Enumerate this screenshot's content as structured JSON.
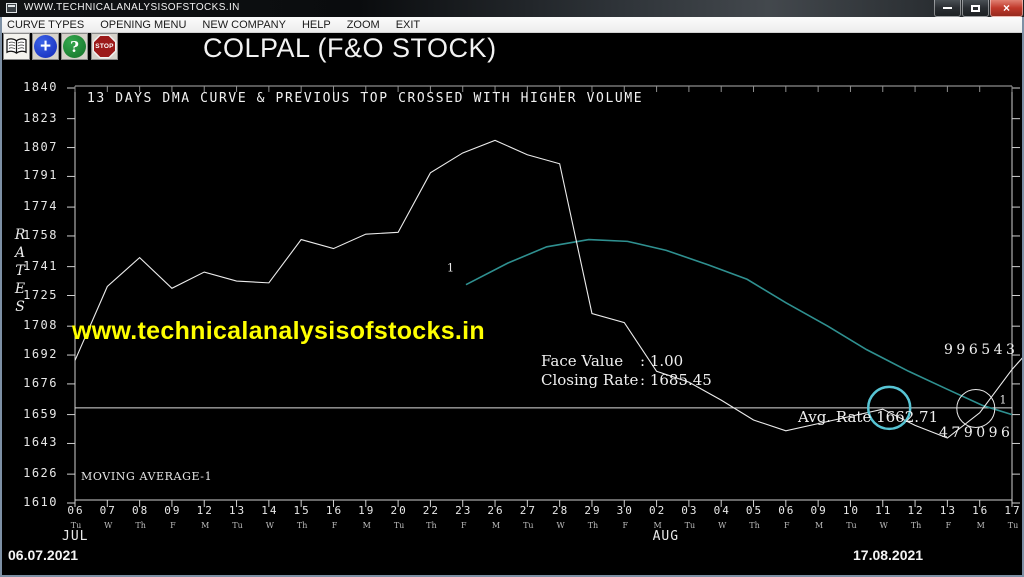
{
  "window": {
    "title": "WWW.TECHNICALANALYSISOFSTOCKS.IN"
  },
  "menu": {
    "items": [
      "CURVE TYPES",
      "OPENING MENU",
      "NEW COMPANY",
      "HELP",
      "ZOOM",
      "EXIT"
    ]
  },
  "toolbar": {
    "add_glyph": "+",
    "help_glyph": "?",
    "stop_label": "STOP"
  },
  "header": {
    "title": "COLPAL (F&O STOCK)"
  },
  "chart_data": {
    "type": "line",
    "title": "13 DAYS DMA CURVE & PREVIOUS TOP CROSSED WITH HIGHER VOLUME",
    "watermark": "www.technicalanalysisofstocks.in",
    "y_axis_title": "RATES",
    "ylim": [
      1610,
      1840
    ],
    "y_ticks": [
      1840,
      1823,
      1807,
      1791,
      1774,
      1758,
      1741,
      1725,
      1708,
      1692,
      1676,
      1659,
      1643,
      1626,
      1610
    ],
    "dates": [
      {
        "d": "06",
        "w": "Tu"
      },
      {
        "d": "07",
        "w": "W"
      },
      {
        "d": "08",
        "w": "Th"
      },
      {
        "d": "09",
        "w": "F"
      },
      {
        "d": "12",
        "w": "M"
      },
      {
        "d": "13",
        "w": "Tu"
      },
      {
        "d": "14",
        "w": "W"
      },
      {
        "d": "15",
        "w": "Th"
      },
      {
        "d": "16",
        "w": "F"
      },
      {
        "d": "19",
        "w": "M"
      },
      {
        "d": "20",
        "w": "Tu"
      },
      {
        "d": "22",
        "w": "Th"
      },
      {
        "d": "23",
        "w": "F"
      },
      {
        "d": "26",
        "w": "M"
      },
      {
        "d": "27",
        "w": "Tu"
      },
      {
        "d": "28",
        "w": "W"
      },
      {
        "d": "29",
        "w": "Th"
      },
      {
        "d": "30",
        "w": "F"
      },
      {
        "d": "02",
        "w": "M"
      },
      {
        "d": "03",
        "w": "Tu"
      },
      {
        "d": "04",
        "w": "W"
      },
      {
        "d": "05",
        "w": "Th"
      },
      {
        "d": "06",
        "w": "F"
      },
      {
        "d": "09",
        "w": "M"
      },
      {
        "d": "10",
        "w": "Tu"
      },
      {
        "d": "11",
        "w": "W"
      },
      {
        "d": "12",
        "w": "Th"
      },
      {
        "d": "13",
        "w": "F"
      },
      {
        "d": "16",
        "w": "M"
      },
      {
        "d": "17",
        "w": "Tu"
      }
    ],
    "months": [
      {
        "label": "JUL",
        "at": 0
      },
      {
        "label": "AUG",
        "at": 18
      }
    ],
    "series": [
      {
        "name": "daily-rate",
        "color": "#ececec",
        "values": [
          1689,
          1730,
          1746,
          1729,
          1738,
          1733,
          1732,
          1756,
          1751,
          1759,
          1760,
          1793,
          1804,
          1811,
          1803,
          1798,
          1715,
          1710,
          1683,
          1677,
          1667,
          1656,
          1650,
          1654,
          1658,
          1662,
          1653,
          1646,
          1660,
          1684
        ]
      },
      {
        "name": "moving-average-1",
        "color": "#2f9090",
        "points": [
          [
            12.1,
            1731
          ],
          [
            13.4,
            1743
          ],
          [
            14.6,
            1752
          ],
          [
            15.9,
            1756
          ],
          [
            17.1,
            1755
          ],
          [
            18.3,
            1750
          ],
          [
            19.6,
            1742
          ],
          [
            20.8,
            1734
          ],
          [
            22.0,
            1721
          ],
          [
            23.3,
            1708
          ],
          [
            24.5,
            1695
          ],
          [
            25.8,
            1683
          ],
          [
            27.0,
            1673
          ],
          [
            28.1,
            1664
          ],
          [
            29.0,
            1659
          ]
        ]
      }
    ],
    "price_overshoot": [
      29.35,
      1691
    ],
    "avg_line": {
      "label": "Avg. Rate 1662.71",
      "value": 1662.71
    },
    "markers": [
      {
        "kind": "highlight-circle",
        "color": "#57c4d4",
        "i": 25.2,
        "value": 1662.7,
        "r": 21,
        "w": 2.5
      },
      {
        "kind": "highlight-circle",
        "color": "#e8e8e8",
        "i": 27.88,
        "value": 1662.4,
        "r": 19,
        "w": 1
      },
      {
        "kind": "curve-number",
        "text": "1",
        "i": 11.62,
        "value": 1740
      },
      {
        "kind": "curve-number",
        "text": "1",
        "i": 28.72,
        "value": 1667
      }
    ],
    "annotations": {
      "face_value_label": "Face Value",
      "face_value": ": 1.00",
      "closing_rate_label": "Closing Rate",
      "closing_rate": ": 1685.45",
      "volume_high": "996543",
      "volume_low": "479096",
      "ma_caption": "MOVING AVERAGE-1",
      "period_start": "06.07.2021",
      "period_end": "17.08.2021"
    }
  }
}
